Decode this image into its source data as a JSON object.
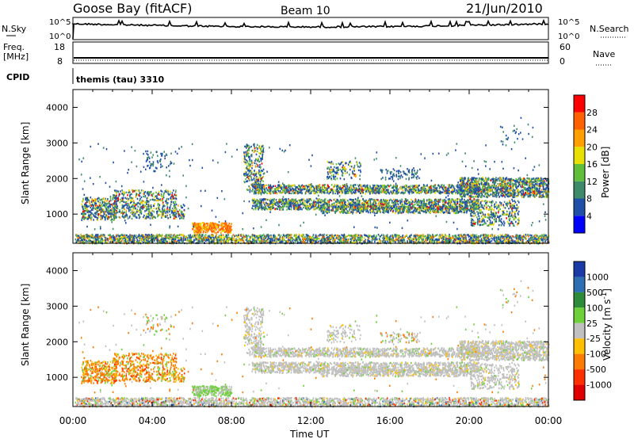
{
  "header": {
    "site": "Goose Bay (fitACF)",
    "beam": "Beam 10",
    "date": "21/Jun/2010"
  },
  "noise_panel": {
    "left_label": "N.Sky",
    "right_label": "N.Search",
    "tick_top": "10^5",
    "tick_bottom": "10^0"
  },
  "freq_panel": {
    "left_label_1": "Freq.",
    "left_label_2": "[MHz]",
    "left_ticks": [
      "18",
      "8"
    ],
    "right_label": "Nave",
    "right_ticks": [
      "60",
      "0"
    ]
  },
  "cpid": {
    "label": "CPID",
    "value": "themis (tau) 3310"
  },
  "colors": {
    "power_scale": [
      "#0000ff",
      "#1f4fa8",
      "#3f8a6a",
      "#5fbf3a",
      "#e8e000",
      "#ffa000",
      "#ff6000",
      "#ff0000"
    ],
    "velocity_scale": [
      "#1a3aa8",
      "#2e6fb4",
      "#2e8b3a",
      "#6fd13a",
      "#c0c0c0",
      "#ffc000",
      "#ff7a00",
      "#ff3000",
      "#e00000"
    ]
  },
  "chart_data": [
    {
      "type": "heatmap",
      "name": "power",
      "xlabel": "",
      "ylabel": "Slant Range [km]",
      "yticks": [
        "1000",
        "2000",
        "3000",
        "4000"
      ],
      "ylim": [
        180,
        4500
      ],
      "colorbar_label": "Power [dB]",
      "colorbar_ticks": [
        "4",
        "8",
        "12",
        "16",
        "20",
        "24",
        "28"
      ],
      "features": [
        {
          "t": [
            0.0,
            24.0
          ],
          "r": [
            200,
            480
          ],
          "level": "mixed"
        },
        {
          "t": [
            9.0,
            24.0
          ],
          "r": [
            1100,
            1900
          ],
          "level": "mixed"
        },
        {
          "t": [
            1.0,
            5.0
          ],
          "r": [
            800,
            1600
          ],
          "level": "mixed"
        },
        {
          "t": [
            6.0,
            8.0
          ],
          "r": [
            500,
            800
          ],
          "level": "high"
        },
        {
          "t": [
            19.5,
            24.0
          ],
          "r": [
            1500,
            2100
          ],
          "level": "high"
        }
      ]
    },
    {
      "type": "heatmap",
      "name": "velocity",
      "xlabel": "Time UT",
      "ylabel": "Slant Range [km]",
      "xticks": [
        "00:00",
        "04:00",
        "08:00",
        "12:00",
        "16:00",
        "20:00",
        "00:00"
      ],
      "yticks": [
        "1000",
        "2000",
        "3000",
        "4000"
      ],
      "ylim": [
        180,
        4500
      ],
      "colorbar_label": "Velocity [m s^-1]",
      "colorbar_ticks": [
        "1000",
        "500",
        "100",
        "25",
        "-25",
        "-100",
        "-500",
        "-1000"
      ]
    }
  ]
}
